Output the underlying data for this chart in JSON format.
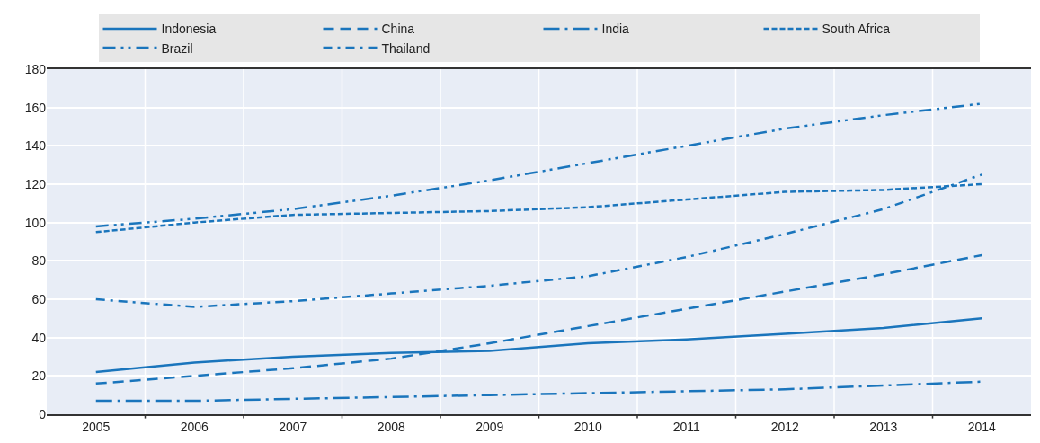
{
  "chart_data": {
    "type": "line",
    "categories": [
      "2005",
      "2006",
      "2007",
      "2008",
      "2009",
      "2010",
      "2011",
      "2012",
      "2013",
      "2014"
    ],
    "ylim": [
      0,
      180
    ],
    "yticks": [
      0,
      20,
      40,
      60,
      80,
      100,
      120,
      140,
      160,
      180
    ],
    "grid": true,
    "legend": "top",
    "marker": "none",
    "series": [
      {
        "name": "Indonesia",
        "color": "#1a75bc",
        "line_style": "solid",
        "values": [
          22,
          27,
          30,
          32,
          33,
          37,
          39,
          42,
          45,
          50
        ]
      },
      {
        "name": "China",
        "color": "#1a75bc",
        "line_style": "dashed",
        "values": [
          16,
          20,
          24,
          29,
          37,
          46,
          55,
          64,
          73,
          83
        ]
      },
      {
        "name": "India",
        "color": "#1a75bc",
        "line_style": "longdashdot",
        "values": [
          7,
          7,
          8,
          9,
          10,
          11,
          12,
          13,
          15,
          17
        ]
      },
      {
        "name": "South Africa",
        "color": "#1a75bc",
        "line_style": "shortdash",
        "values": [
          95,
          100,
          104,
          105,
          106,
          108,
          112,
          116,
          117,
          120
        ]
      },
      {
        "name": "Brazil",
        "color": "#1a75bc",
        "line_style": "dashdotdot",
        "values": [
          98,
          102,
          107,
          114,
          122,
          131,
          140,
          149,
          156,
          162
        ]
      },
      {
        "name": "Thailand",
        "color": "#1a75bc",
        "line_style": "dashdot",
        "values": [
          60,
          56,
          59,
          63,
          67,
          72,
          82,
          94,
          107,
          125
        ]
      }
    ]
  }
}
